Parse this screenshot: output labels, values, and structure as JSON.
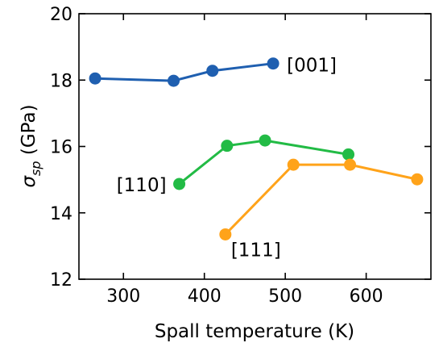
{
  "chart_data": {
    "type": "line",
    "xlabel": "Spall temperature (K)",
    "ylabel_symbol": "σ",
    "ylabel_subscript": "sp",
    "ylabel_unit": "(GPa)",
    "xlim": [
      245,
      680
    ],
    "ylim": [
      12,
      20
    ],
    "x_ticks": [
      300,
      400,
      500,
      600
    ],
    "y_ticks": [
      12,
      14,
      16,
      18,
      20
    ],
    "ticks_direction": "in",
    "grid": false,
    "legend": "none",
    "series": [
      {
        "label": "[001]",
        "color": "#1f5fb0",
        "label_anchor": "end",
        "points": [
          {
            "x": 265,
            "y": 18.05
          },
          {
            "x": 362,
            "y": 17.98
          },
          {
            "x": 410,
            "y": 18.28
          },
          {
            "x": 485,
            "y": 18.5
          }
        ]
      },
      {
        "label": "[110]",
        "color": "#22bb45",
        "label_anchor": "start",
        "points": [
          {
            "x": 369,
            "y": 14.87
          },
          {
            "x": 428,
            "y": 16.02
          },
          {
            "x": 475,
            "y": 16.18
          },
          {
            "x": 578,
            "y": 15.76
          }
        ]
      },
      {
        "label": "[111]",
        "color": "#ffa31a",
        "label_anchor": "start",
        "points": [
          {
            "x": 426,
            "y": 13.35
          },
          {
            "x": 510,
            "y": 15.45
          },
          {
            "x": 580,
            "y": 15.45
          },
          {
            "x": 663,
            "y": 15.01
          }
        ]
      }
    ]
  }
}
